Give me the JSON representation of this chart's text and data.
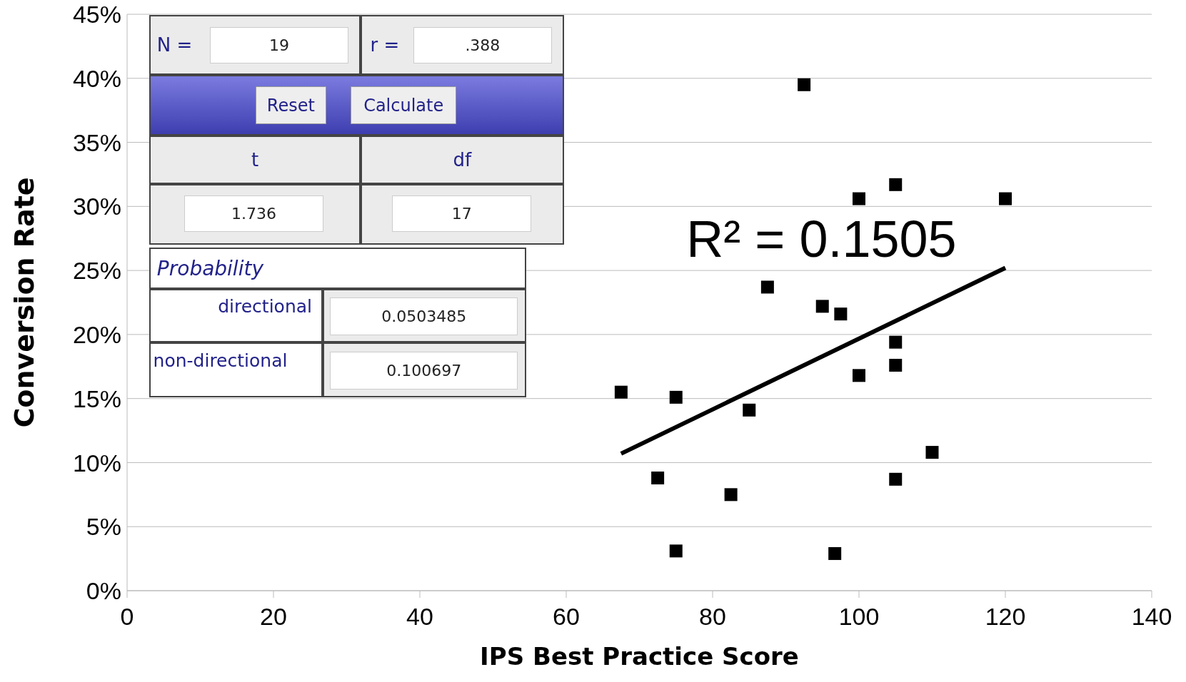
{
  "chart_data": {
    "type": "scatter",
    "xlabel": "IPS Best Practice Score",
    "ylabel": "Conversion Rate",
    "grid": "y",
    "xlim": [
      0,
      140
    ],
    "xticks": [
      0,
      20,
      40,
      60,
      80,
      100,
      120,
      140
    ],
    "ylim": [
      0,
      45
    ],
    "yticks": [
      {
        "value": 0,
        "label": "0%"
      },
      {
        "value": 5,
        "label": "5%"
      },
      {
        "value": 10,
        "label": "10%"
      },
      {
        "value": 15,
        "label": "15%"
      },
      {
        "value": 20,
        "label": "20%"
      },
      {
        "value": 25,
        "label": "25%"
      },
      {
        "value": 30,
        "label": "30%"
      },
      {
        "value": 35,
        "label": "35%"
      },
      {
        "value": 40,
        "label": "40%"
      },
      {
        "value": 45,
        "label": "45%"
      }
    ],
    "series": [
      {
        "marker": "square",
        "color": "#000000",
        "x": [
          67.5,
          75,
          85,
          72.5,
          82.5,
          75,
          96.7,
          92.5,
          100,
          105,
          120,
          87.5,
          95,
          97.5,
          105,
          105,
          100,
          110,
          105
        ],
        "values": [
          15.5,
          15.1,
          14.1,
          8.8,
          7.5,
          3.1,
          2.9,
          39.5,
          30.6,
          31.7,
          30.6,
          23.7,
          22.2,
          21.6,
          19.4,
          17.6,
          16.8,
          10.8,
          8.7
        ]
      },
      {
        "type": "line",
        "color": "#000000",
        "x": [
          67.5,
          120
        ],
        "values": [
          10.7,
          25.2
        ]
      }
    ],
    "annotations": [
      "R² = 0.1505",
      "N =",
      "19",
      "r =",
      ".388",
      "Reset",
      "Calculate",
      "t",
      "df",
      "1.736",
      "17",
      "Probability",
      "directional",
      "0.0503485",
      "non-directional",
      "0.100697"
    ]
  }
}
